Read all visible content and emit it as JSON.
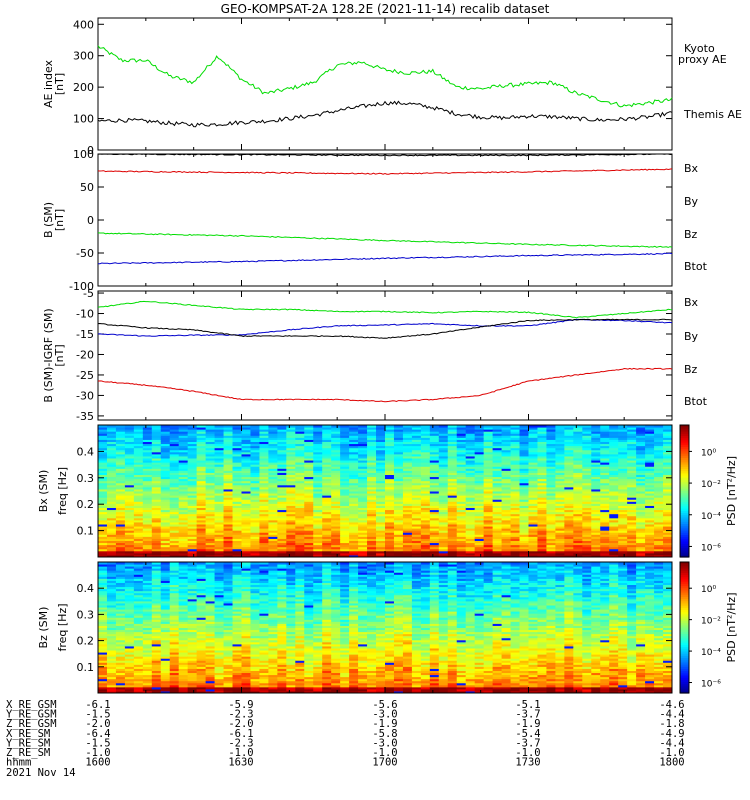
{
  "title": "GEO-KOMPSAT-2A 128.2E (2021-11-14) recalib dataset",
  "x_axis": {
    "ticks": [
      "1600",
      "1630",
      "1700",
      "1730",
      "1800"
    ]
  },
  "ephemeris": {
    "labels": [
      "X_RE_GSM",
      "Y_RE_GSM",
      "Z_RE_GSM",
      "X_RE_SM",
      "Y_RE_SM",
      "Z_RE_SM",
      "hhmm"
    ],
    "rows": [
      [
        "-6.1",
        "-5.9",
        "-5.6",
        "-5.1",
        "-4.6"
      ],
      [
        "-1.5",
        "-2.3",
        "-3.0",
        "-3.7",
        "-4.4"
      ],
      [
        "-2.0",
        "-2.0",
        "-1.9",
        "-1.9",
        "-1.8"
      ],
      [
        "-6.4",
        "-6.1",
        "-5.8",
        "-5.4",
        "-4.9"
      ],
      [
        "-1.5",
        "-2.3",
        "-3.0",
        "-3.7",
        "-4.4"
      ],
      [
        "-1.0",
        "-1.0",
        "-1.0",
        "-1.0",
        "-1.0"
      ],
      [
        "1600",
        "1630",
        "1700",
        "1730",
        "1800"
      ]
    ],
    "date": "2021 Nov 14"
  },
  "colors": {
    "kyoto": "#00dd00",
    "themis": "#000000",
    "bx": "#0000cc",
    "by": "#00dd00",
    "bz": "#dd0000",
    "btot": "#000000"
  },
  "chart_data": [
    {
      "type": "line",
      "panel": "AE index",
      "ylabel": "AE index",
      "yunit": "[nT]",
      "ylim": [
        0,
        420
      ],
      "yticks": [
        "0",
        "100",
        "200",
        "300",
        "400"
      ],
      "x": [
        "16:00",
        "16:05",
        "16:10",
        "16:15",
        "16:20",
        "16:25",
        "16:30",
        "16:35",
        "16:40",
        "16:45",
        "16:50",
        "16:55",
        "17:00",
        "17:05",
        "17:10",
        "17:15",
        "17:20",
        "17:25",
        "17:30",
        "17:35",
        "17:40",
        "17:45",
        "17:50",
        "17:55",
        "18:00"
      ],
      "series": [
        {
          "name": "Kyoto proxy AE",
          "legend": [
            "Kyoto",
            "proxy AE"
          ],
          "colorKey": "kyoto",
          "values": [
            330,
            285,
            285,
            235,
            215,
            300,
            225,
            180,
            195,
            215,
            270,
            280,
            255,
            245,
            250,
            200,
            195,
            205,
            210,
            215,
            180,
            160,
            140,
            150,
            160
          ]
        },
        {
          "name": "Themis AE",
          "legend": [
            "Themis AE"
          ],
          "colorKey": "themis",
          "values": [
            92,
            95,
            92,
            85,
            80,
            82,
            88,
            92,
            100,
            110,
            125,
            138,
            150,
            148,
            135,
            115,
            105,
            102,
            108,
            106,
            100,
            95,
            98,
            105,
            118
          ]
        }
      ]
    },
    {
      "type": "line",
      "panel": "B (SM)",
      "ylabel": "B (SM)",
      "yunit": "[nT]",
      "ylim": [
        -100,
        100
      ],
      "yticks": [
        "-100",
        "-50",
        "0",
        "50",
        "100"
      ],
      "x": [
        "16:00",
        "16:30",
        "17:00",
        "17:30",
        "18:00"
      ],
      "series": [
        {
          "name": "Bx",
          "colorKey": "bx",
          "values": [
            -66,
            -63,
            -58,
            -54,
            -51
          ]
        },
        {
          "name": "By",
          "colorKey": "by",
          "values": [
            -20,
            -24,
            -31,
            -37,
            -41
          ]
        },
        {
          "name": "Bz",
          "colorKey": "bz",
          "values": [
            74,
            72,
            70,
            73,
            77
          ]
        },
        {
          "name": "Btot",
          "colorKey": "btot",
          "values": [
            100,
            99,
            98,
            98,
            100
          ]
        }
      ]
    },
    {
      "type": "line",
      "panel": "B (SM)-IGRF (SM)",
      "ylabel": "B (SM)-IGRF (SM)",
      "yunit": "[nT]",
      "ylim": [
        -36,
        -4.5
      ],
      "yticks": [
        "-35",
        "-30",
        "-25",
        "-20",
        "-15",
        "-10",
        "-5"
      ],
      "x": [
        "16:00",
        "16:10",
        "16:20",
        "16:30",
        "16:40",
        "16:50",
        "17:00",
        "17:10",
        "17:20",
        "17:30",
        "17:40",
        "17:50",
        "18:00"
      ],
      "series": [
        {
          "name": "Bx",
          "colorKey": "bx",
          "values": [
            -15,
            -15.5,
            -15.3,
            -15.2,
            -14,
            -13,
            -12.8,
            -12.5,
            -13,
            -13,
            -11.5,
            -11.7,
            -12.3
          ]
        },
        {
          "name": "By",
          "colorKey": "by",
          "values": [
            -8.5,
            -7,
            -8,
            -9,
            -9,
            -9.5,
            -9.5,
            -9.8,
            -9.5,
            -9.7,
            -11,
            -10,
            -9
          ]
        },
        {
          "name": "Bz",
          "colorKey": "bz",
          "values": [
            -26.5,
            -27.5,
            -29,
            -31,
            -31,
            -31,
            -31.5,
            -31,
            -30,
            -26.5,
            -25,
            -23.5,
            -23.5
          ]
        },
        {
          "name": "Btot",
          "colorKey": "btot",
          "values": [
            -12.5,
            -13.5,
            -14,
            -15.5,
            -15.5,
            -15.5,
            -16,
            -15,
            -13.3,
            -11.7,
            -11.5,
            -11.5,
            -11.5
          ]
        }
      ]
    },
    {
      "type": "heatmap",
      "panel": "Bx (SM) spectrogram",
      "ylabel": "Bx (SM)",
      "yunit": "freq [Hz]",
      "yticks": [
        "0.1",
        "0.2",
        "0.3",
        "0.4"
      ],
      "ylim": [
        0,
        0.5
      ],
      "colorbar": {
        "label": "PSD [nT²/Hz]",
        "ticks": [
          "10⁰",
          "10⁻²",
          "10⁻⁴",
          "10⁻⁶"
        ]
      }
    },
    {
      "type": "heatmap",
      "panel": "Bz (SM) spectrogram",
      "ylabel": "Bz (SM)",
      "yunit": "freq [Hz]",
      "yticks": [
        "0.1",
        "0.2",
        "0.3",
        "0.4"
      ],
      "ylim": [
        0,
        0.5
      ],
      "colorbar": {
        "label": "PSD [nT²/Hz]",
        "ticks": [
          "10⁰",
          "10⁻²",
          "10⁻⁴",
          "10⁻⁶"
        ]
      }
    }
  ]
}
